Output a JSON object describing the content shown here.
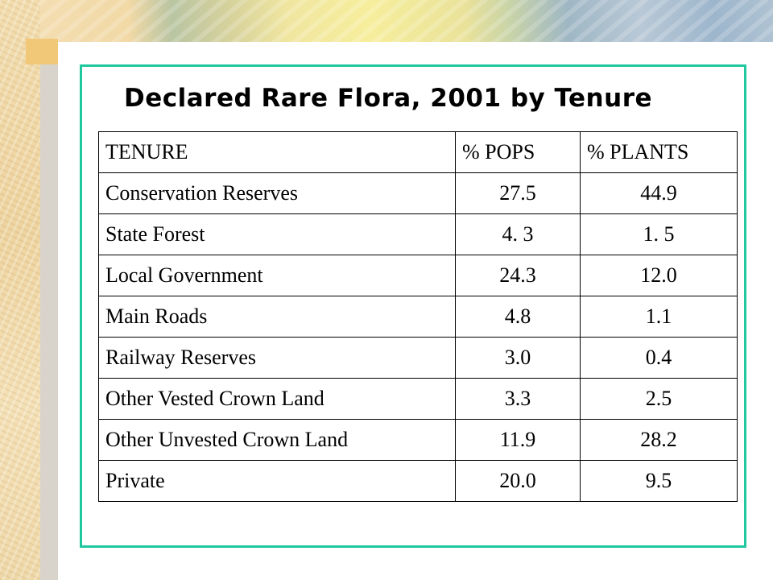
{
  "slide": {
    "title": "Declared Rare Flora, 2001 by Tenure"
  },
  "table": {
    "headers": [
      "TENURE",
      "% POPS",
      "% PLANTS"
    ],
    "rows": [
      [
        "Conservation Reserves",
        "27.5",
        "44.9"
      ],
      [
        "State Forest",
        "4. 3",
        "1. 5"
      ],
      [
        "Local Government",
        "24.3",
        "12.0"
      ],
      [
        "Main Roads",
        "4.8",
        "1.1"
      ],
      [
        "Railway Reserves",
        "3.0",
        "0.4"
      ],
      [
        "Other Vested Crown Land",
        "3.3",
        "2.5"
      ],
      [
        "Other Unvested Crown Land",
        "11.9",
        "28.2"
      ],
      [
        "Private",
        "20.0",
        "9.5"
      ]
    ]
  },
  "colors": {
    "frame_border": "#20c8a0",
    "background": "#ffffff",
    "text": "#000000"
  }
}
